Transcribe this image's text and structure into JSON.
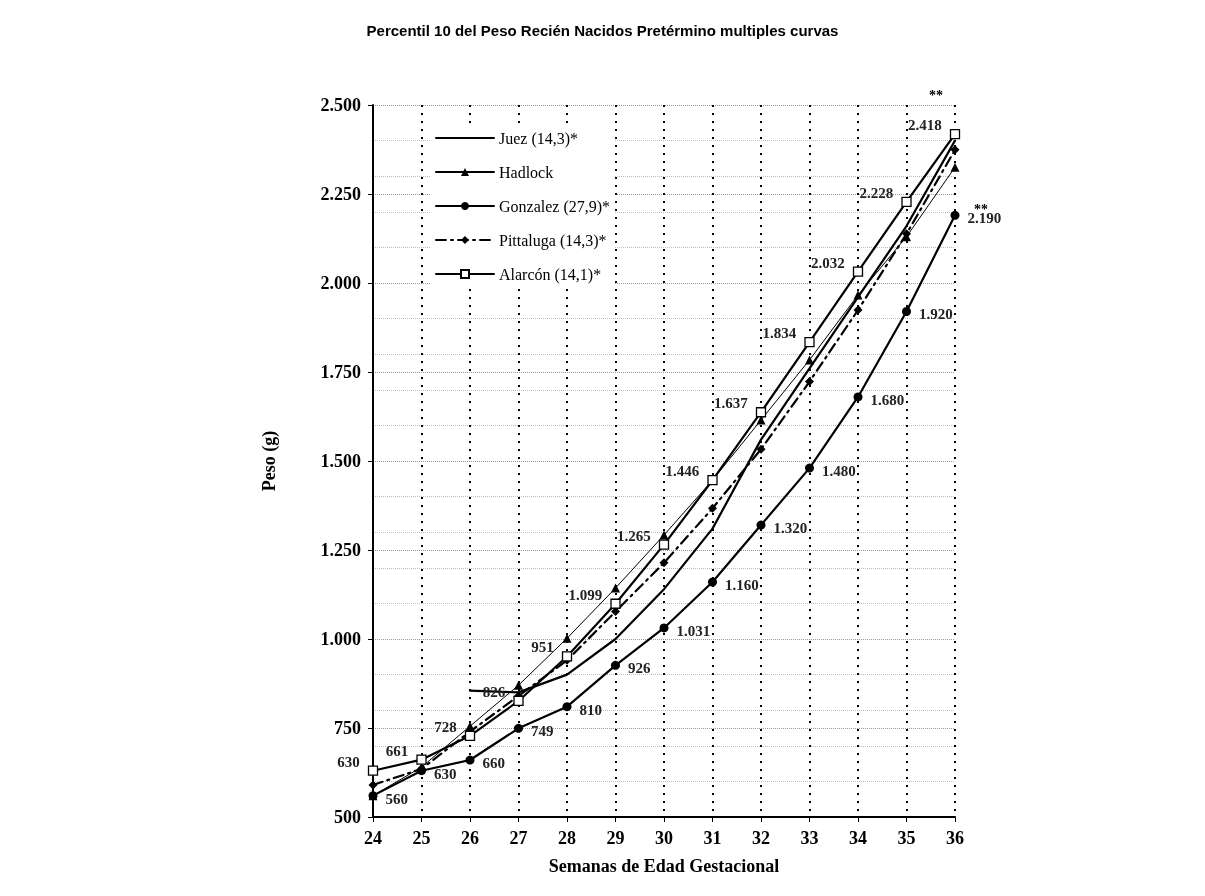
{
  "chart_data": {
    "type": "line",
    "title": "Percentil 10 del Peso Recién Nacidos Pretérmino multiples curvas",
    "xlabel": "Semanas de Edad Gestacional",
    "ylabel": "Peso (g)",
    "x": [
      24,
      25,
      26,
      27,
      28,
      29,
      30,
      31,
      32,
      33,
      34,
      35,
      36
    ],
    "xlim": [
      24,
      36
    ],
    "xticks": [
      24,
      25,
      26,
      27,
      28,
      29,
      30,
      31,
      32,
      33,
      34,
      35,
      36
    ],
    "ylim": [
      500,
      2500
    ],
    "yticks": [
      {
        "value": 500,
        "label": "500"
      },
      {
        "value": 750,
        "label": "750"
      },
      {
        "value": 1000,
        "label": "1.000"
      },
      {
        "value": 1250,
        "label": "1.250"
      },
      {
        "value": 1500,
        "label": "1.500"
      },
      {
        "value": 1750,
        "label": "1.750"
      },
      {
        "value": 2000,
        "label": "2.000"
      },
      {
        "value": 2250,
        "label": "2.250"
      },
      {
        "value": 2500,
        "label": "2.500"
      }
    ],
    "grid": true,
    "legend": "top left",
    "series": [
      {
        "name": "Juez (14,3)*",
        "color": "#000000",
        "marker": "none",
        "line_style": "solid",
        "values": [
          null,
          null,
          855,
          850,
          900,
          1000,
          1140,
          1310,
          1560,
          1760,
          1960,
          2160,
          2400
        ]
      },
      {
        "name": "Hadlock",
        "color": "#000000",
        "marker": "triangle",
        "line_style": "solid",
        "values": [
          560,
          640,
          755,
          870,
          1002,
          1143,
          1292,
          1446,
          1615,
          1784,
          1966,
          2130,
          2325
        ]
      },
      {
        "name": "Gonzalez (27,9)*",
        "color": "#000000",
        "marker": "circle",
        "line_style": "solid",
        "values": [
          560,
          630,
          660,
          749,
          810,
          926,
          1031,
          1160,
          1320,
          1480,
          1680,
          1920,
          2190
        ],
        "value_labels": [
          "560",
          "630",
          "660",
          "749",
          "810",
          "926",
          "1.031",
          "1.160",
          "1.320",
          "1.480",
          "1.680",
          "1.920",
          "2.190"
        ]
      },
      {
        "name": "Pittaluga (14,3)*",
        "color": "#000000",
        "marker": "diamond",
        "line_style": "dashed",
        "values": [
          590,
          635,
          740,
          840,
          940,
          1077,
          1214,
          1367,
          1533,
          1723,
          1924,
          2138,
          2374
        ]
      },
      {
        "name": "Alarcón (14,1)*",
        "color": "#000000",
        "marker": "square",
        "line_style": "solid",
        "values": [
          630,
          661,
          728,
          826,
          951,
          1099,
          1265,
          1446,
          1637,
          1834,
          2032,
          2228,
          2418
        ],
        "value_labels": [
          "630",
          "661",
          "728",
          "826",
          "951",
          "1.099",
          "1.265",
          "1.446",
          "1.637",
          "1.834",
          "2.032",
          "2.228",
          "2.418"
        ]
      }
    ],
    "annotations": [
      "**",
      {
        "text": "**",
        "x": 36,
        "y": 2190
      }
    ]
  }
}
